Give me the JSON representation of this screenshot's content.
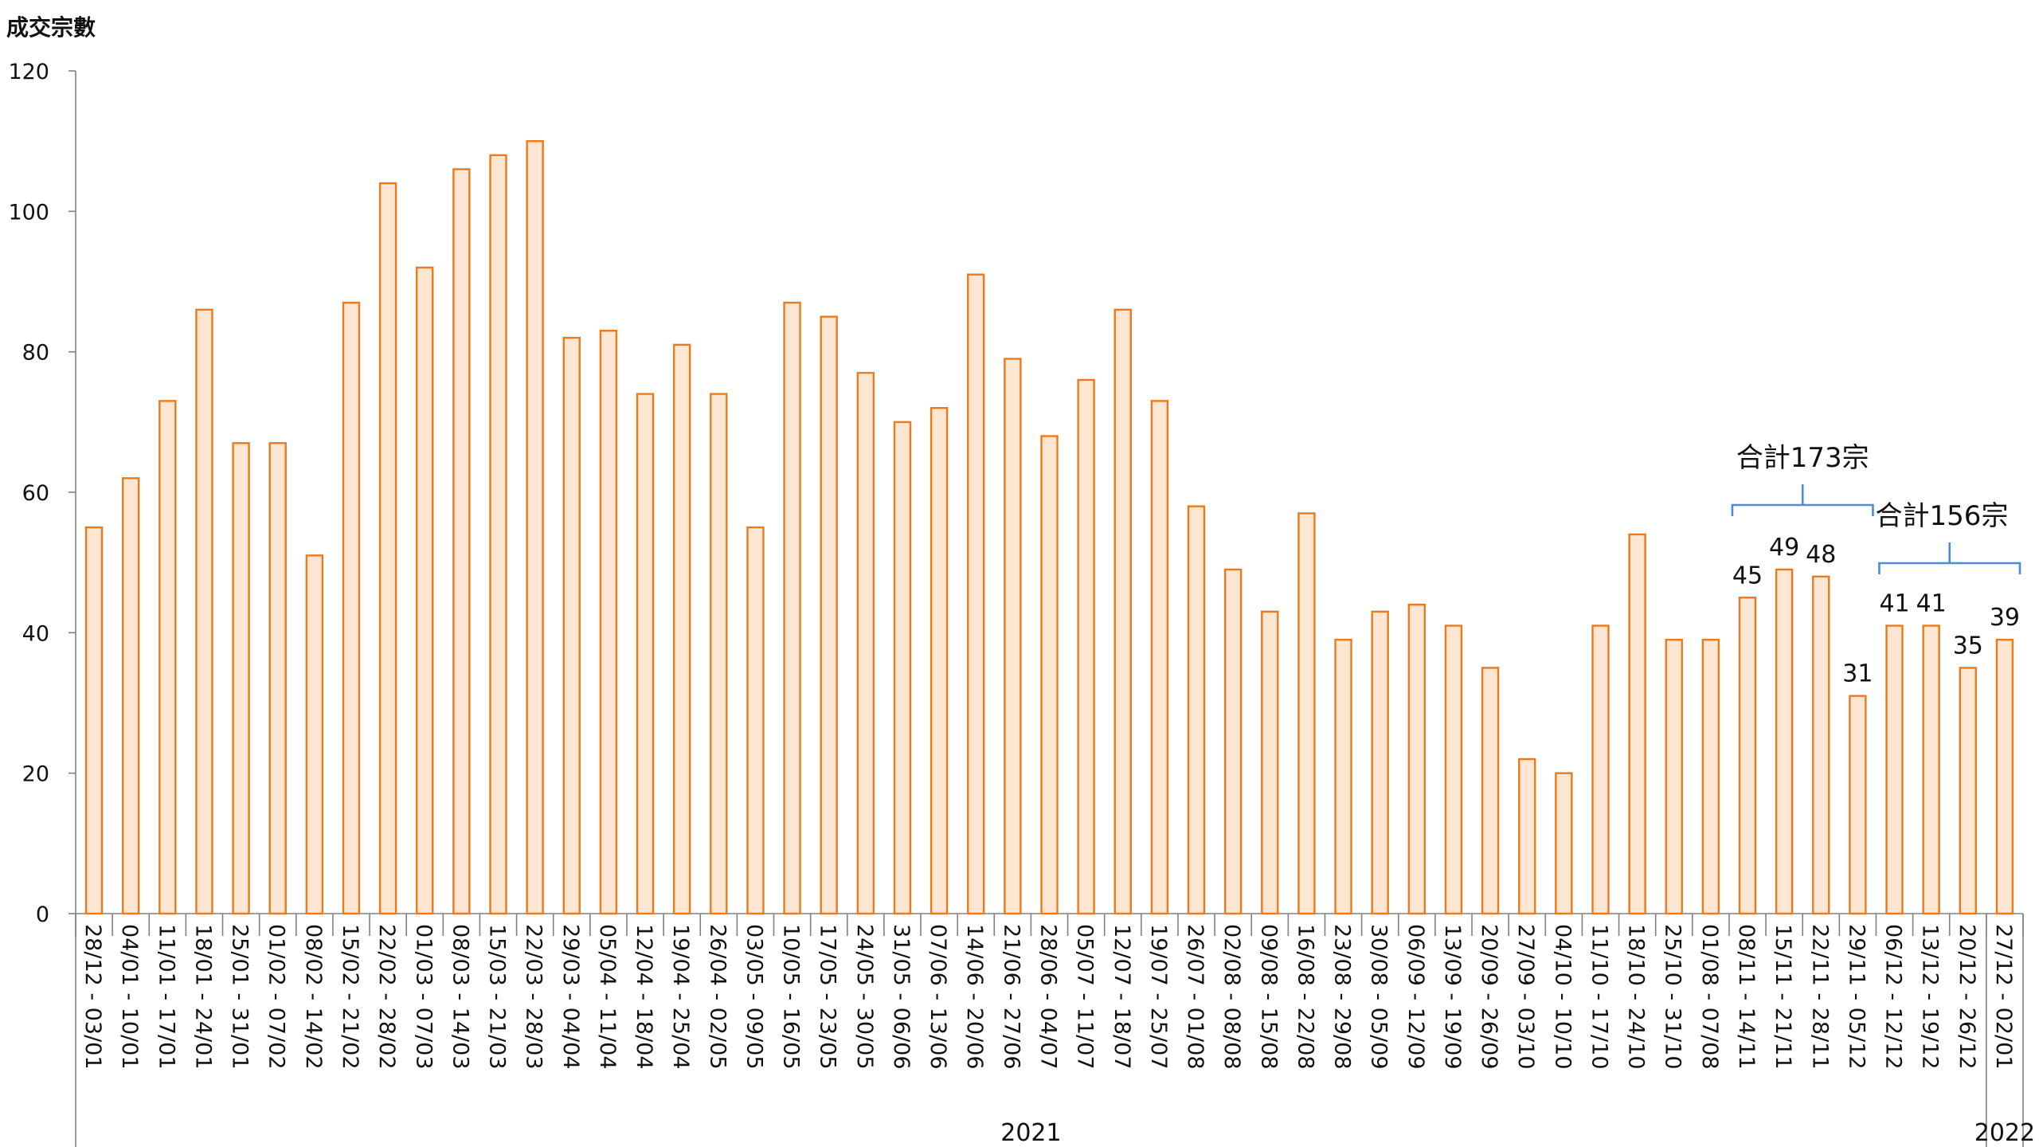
{
  "chart_data": {
    "type": "bar",
    "ylabel": "成交宗數",
    "ylim": [
      0,
      120
    ],
    "yticks": [
      0,
      20,
      40,
      60,
      80,
      100,
      120
    ],
    "categories": [
      "28/12 - 03/01",
      "04/01 - 10/01",
      "11/01 - 17/01",
      "18/01 - 24/01",
      "25/01 - 31/01",
      "01/02 - 07/02",
      "08/02 - 14/02",
      "15/02 - 21/02",
      "22/02 - 28/02",
      "01/03 - 07/03",
      "08/03 - 14/03",
      "15/03 - 21/03",
      "22/03 - 28/03",
      "29/03 - 04/04",
      "05/04 - 11/04",
      "12/04 - 18/04",
      "19/04 - 25/04",
      "26/04 - 02/05",
      "03/05 - 09/05",
      "10/05 - 16/05",
      "17/05 - 23/05",
      "24/05 - 30/05",
      "31/05 - 06/06",
      "07/06 - 13/06",
      "14/06 - 20/06",
      "21/06 - 27/06",
      "28/06 - 04/07",
      "05/07 - 11/07",
      "12/07 - 18/07",
      "19/07 - 25/07",
      "26/07 - 01/08",
      "02/08 - 08/08",
      "09/08 - 15/08",
      "16/08 - 22/08",
      "23/08 - 29/08",
      "30/08 - 05/09",
      "06/09 - 12/09",
      "13/09 - 19/09",
      "20/09 - 26/09",
      "27/09 - 03/10",
      "04/10 - 10/10",
      "11/10 - 17/10",
      "18/10 - 24/10",
      "25/10 - 31/10",
      "01/08 - 07/08",
      "08/11 - 14/11",
      "15/11 - 21/11",
      "22/11 - 28/11",
      "29/11 - 05/12",
      "06/12 - 12/12",
      "13/12 - 19/12",
      "20/12 - 26/12",
      "27/12 - 02/01"
    ],
    "values": [
      55,
      62,
      73,
      86,
      67,
      67,
      51,
      87,
      104,
      92,
      106,
      108,
      110,
      82,
      83,
      74,
      81,
      74,
      55,
      87,
      85,
      77,
      70,
      72,
      91,
      79,
      68,
      76,
      86,
      73,
      58,
      49,
      43,
      57,
      39,
      43,
      44,
      41,
      35,
      22,
      20,
      41,
      54,
      39,
      39,
      45,
      49,
      48,
      31,
      41,
      41,
      35,
      39
    ],
    "data_labels": [
      {
        "index": 45,
        "text": "45"
      },
      {
        "index": 46,
        "text": "49"
      },
      {
        "index": 47,
        "text": "48"
      },
      {
        "index": 48,
        "text": "31"
      },
      {
        "index": 49,
        "text": "41"
      },
      {
        "index": 50,
        "text": "41"
      },
      {
        "index": 51,
        "text": "35"
      },
      {
        "index": 52,
        "text": "39"
      }
    ],
    "year_groups": [
      {
        "label": "2021",
        "start": 0,
        "end": 51
      },
      {
        "label": "2022",
        "start": 52,
        "end": 52
      }
    ],
    "annotations": [
      {
        "text": "合計173宗",
        "start": 45,
        "end": 48
      },
      {
        "text": "合計156宗",
        "start": 49,
        "end": 52
      }
    ],
    "colors": {
      "bar_fill": "#fde6d2",
      "bar_stroke": "#ec7a1c",
      "bracket": "#4a8cd6",
      "axis": "#808080"
    }
  }
}
